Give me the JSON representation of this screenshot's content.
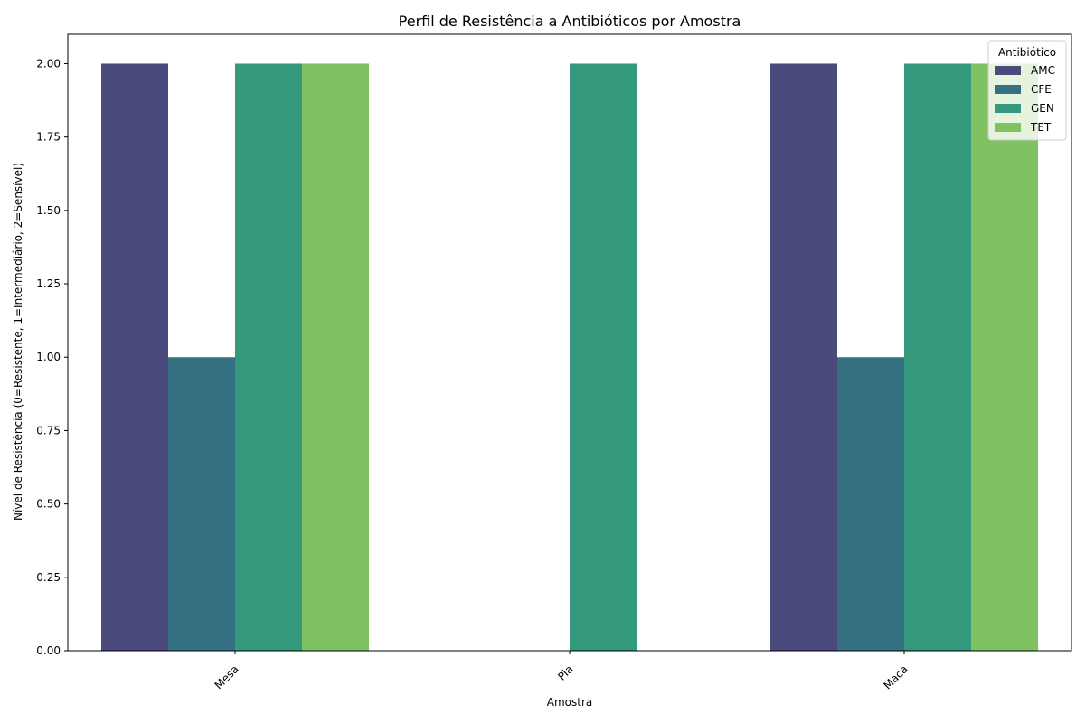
{
  "chart_data": {
    "type": "bar",
    "title": "Perfil de Resistência a Antibióticos por Amostra",
    "xlabel": "Amostra",
    "ylabel": "Nível de Resistência (0=Resistente, 1=Intermediário, 2=Sensível)",
    "categories": [
      "Mesa",
      "Pia",
      "Maca"
    ],
    "series": [
      {
        "name": "AMC",
        "values": [
          2,
          null,
          2
        ],
        "color": "#4a4b7c"
      },
      {
        "name": "CFE",
        "values": [
          1,
          null,
          1
        ],
        "color": "#357183"
      },
      {
        "name": "GEN",
        "values": [
          2,
          2,
          2
        ],
        "color": "#33987c"
      },
      {
        "name": "TET",
        "values": [
          2,
          null,
          2
        ],
        "color": "#80c261"
      }
    ],
    "ylim": [
      0,
      2.1
    ],
    "yticks": [
      "0.00",
      "0.25",
      "0.50",
      "0.75",
      "1.00",
      "1.25",
      "1.50",
      "1.75",
      "2.00"
    ],
    "grid": false,
    "legend": {
      "title": "Antibiótico",
      "position": "top-right"
    }
  }
}
